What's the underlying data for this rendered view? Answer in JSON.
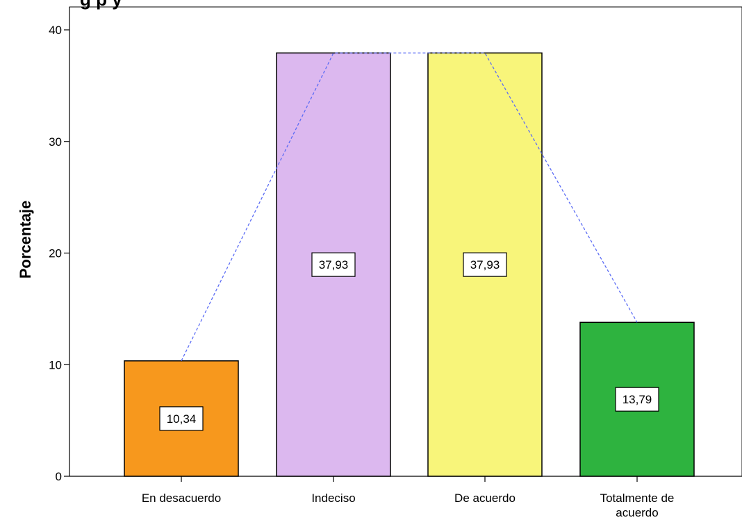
{
  "chart_data": {
    "type": "bar",
    "title": "g     p            y",
    "xlabel": "",
    "ylabel": "Porcentaje",
    "categories": [
      "En desacuerdo",
      "Indeciso",
      "De acuerdo",
      "Totalmente de acuerdo"
    ],
    "category_lines": [
      [
        "En desacuerdo"
      ],
      [
        "Indeciso"
      ],
      [
        "De acuerdo"
      ],
      [
        "Totalmente de",
        "acuerdo"
      ]
    ],
    "values": [
      10.34,
      37.93,
      37.93,
      13.79
    ],
    "value_labels": [
      "10,34",
      "37,93",
      "37,93",
      "13,79"
    ],
    "bar_colors": [
      "#f7981d",
      "#dcb8ef",
      "#f8f57a",
      "#2eb33f"
    ],
    "ylim": [
      0,
      40
    ],
    "yticks": [
      0,
      10,
      20,
      30,
      40
    ],
    "ytick_labels": [
      "0",
      "10",
      "20",
      "30",
      "40"
    ],
    "grid": false,
    "legend": "none",
    "overlay_line": {
      "style": "dashed",
      "color": "#5b6cf5",
      "connects": "bar tops"
    }
  }
}
